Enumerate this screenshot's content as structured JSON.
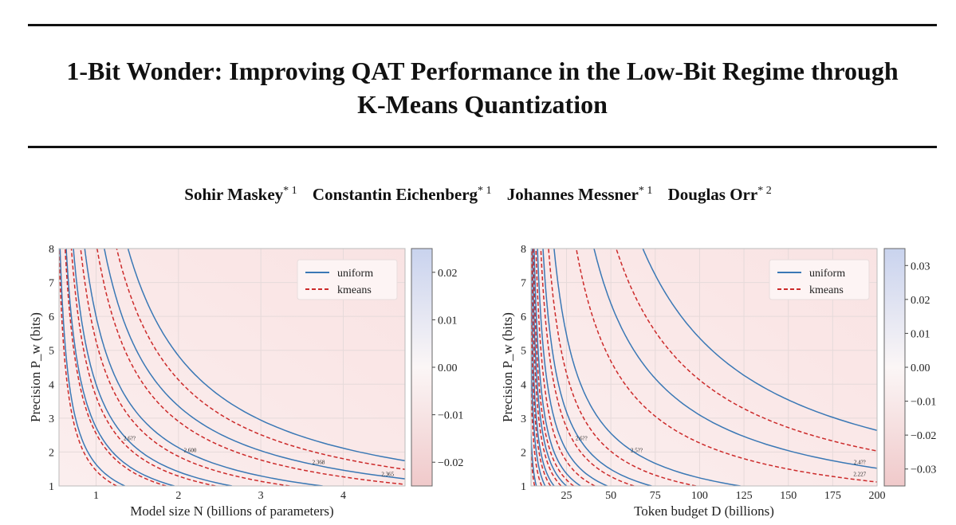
{
  "paper": {
    "title_line1": "1-Bit Wonder: Improving QAT Performance in the Low-Bit Regime through",
    "title_line2": "K-Means Quantization",
    "authors": [
      {
        "name": "Sohir Maskey",
        "sup": "* 1"
      },
      {
        "name": "Constantin Eichenberg",
        "sup": "* 1"
      },
      {
        "name": "Johannes Messner",
        "sup": "* 1"
      },
      {
        "name": "Douglas Orr",
        "sup": "* 2"
      }
    ]
  },
  "colors": {
    "uniform": "#3a78b5",
    "kmeans": "#cc2a2a",
    "cb_pos": "#c9d3ee",
    "cb_zero": "#fbf6f6",
    "cb_neg": "#f0c9ca"
  },
  "chart_data": [
    {
      "type": "contour",
      "xlabel": "Model size N (billions of parameters)",
      "ylabel": "Precision P_w (bits)",
      "xlim": [
        0.55,
        4.75
      ],
      "ylim": [
        1,
        8
      ],
      "xticks": [
        1,
        2,
        3,
        4
      ],
      "yticks": [
        1,
        2,
        3,
        4,
        5,
        6,
        7,
        8
      ],
      "legend": [
        {
          "name": "uniform",
          "style": "solid"
        },
        {
          "name": "kmeans",
          "style": "dashed"
        }
      ],
      "legend_position": "top-right",
      "colorbar": {
        "min": -0.025,
        "max": 0.025,
        "ticks": [
          0.02,
          0.01,
          0.0,
          -0.01,
          -0.02
        ],
        "tick_labels": [
          "0.02",
          "0.01",
          "0.00",
          "−0.01",
          "−0.02"
        ]
      },
      "contour_labels": [
        "2.365",
        "2.368",
        "2.600",
        "2.6??"
      ],
      "uniform_levels": [
        0.9,
        1.5,
        2.2,
        3.3,
        5.2,
        7.5
      ],
      "kmeans_levels": [
        0.8,
        1.4,
        2.0,
        2.9,
        4.5,
        6.4
      ],
      "level_model": "bits*(N - 0.45) = k"
    },
    {
      "type": "contour",
      "xlabel": "Token budget D (billions)",
      "ylabel": "Precision P_w (bits)",
      "xlim": [
        5,
        200
      ],
      "ylim": [
        1,
        8
      ],
      "xticks": [
        25,
        50,
        75,
        100,
        125,
        150,
        175,
        200
      ],
      "yticks": [
        1,
        2,
        3,
        4,
        5,
        6,
        7,
        8
      ],
      "legend": [
        {
          "name": "uniform",
          "style": "solid"
        },
        {
          "name": "kmeans",
          "style": "dashed"
        }
      ],
      "legend_position": "top-right",
      "colorbar": {
        "min": -0.035,
        "max": 0.035,
        "ticks": [
          0.03,
          0.02,
          0.01,
          0.0,
          -0.01,
          -0.02,
          -0.03
        ],
        "tick_labels": [
          "0.03",
          "0.02",
          "0.01",
          "0.00",
          "−0.01",
          "−0.02",
          "−0.03"
        ]
      },
      "contour_labels": [
        "2.227",
        "2.4??",
        "2.5??",
        "2.6??"
      ],
      "uniform_levels": [
        5,
        10,
        15,
        22,
        30,
        45,
        70,
        120,
        300,
        520
      ],
      "kmeans_levels": [
        4,
        8,
        13,
        19,
        26,
        38,
        60,
        95,
        220,
        400
      ],
      "level_model": "bits*(D - 3) = k"
    }
  ]
}
